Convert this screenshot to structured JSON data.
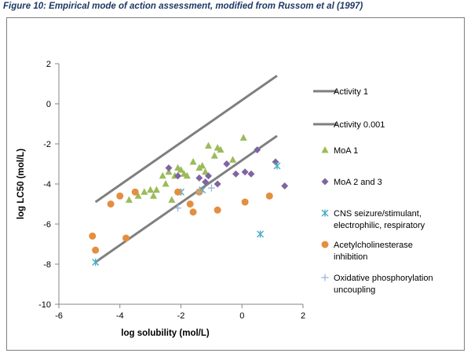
{
  "figure_title": "Figure 10: Empirical mode of action assessment, modified from Russom et al (1997)",
  "chart_data": {
    "type": "scatter",
    "title": "",
    "xlabel": "log solubility (mol/L)",
    "ylabel": "log LC50 (mol/L)",
    "xlim": [
      -6,
      2
    ],
    "ylim": [
      -10,
      2
    ],
    "xticks": [
      "-6",
      "-4",
      "-2",
      "0",
      "2"
    ],
    "yticks": [
      "2",
      "0",
      "-2",
      "-4",
      "-6",
      "-8",
      "-10"
    ],
    "grid": false,
    "legend_position": "right",
    "lines": [
      {
        "name": "Activity 1",
        "color": "#7f7f7f",
        "points": [
          [
            -4.8,
            -4.9
          ],
          [
            1.15,
            1.4
          ]
        ]
      },
      {
        "name": "Activity 0.001",
        "color": "#7f7f7f",
        "points": [
          [
            -4.8,
            -7.9
          ],
          [
            1.15,
            -1.6
          ]
        ]
      }
    ],
    "series": [
      {
        "name": "MoA 1",
        "marker": "triangle",
        "color": "#9bbb59",
        "points": [
          [
            -3.7,
            -4.8
          ],
          [
            -3.4,
            -4.6
          ],
          [
            -3.2,
            -4.4
          ],
          [
            -3.0,
            -4.3
          ],
          [
            -2.9,
            -4.6
          ],
          [
            -2.8,
            -4.3
          ],
          [
            -2.6,
            -3.6
          ],
          [
            -2.5,
            -4.0
          ],
          [
            -2.4,
            -3.4
          ],
          [
            -2.3,
            -4.8
          ],
          [
            -2.2,
            -3.6
          ],
          [
            -2.1,
            -3.2
          ],
          [
            -2.0,
            -3.3
          ],
          [
            -1.9,
            -3.5
          ],
          [
            -1.8,
            -3.6
          ],
          [
            -1.6,
            -2.9
          ],
          [
            -1.4,
            -3.2
          ],
          [
            -1.3,
            -3.1
          ],
          [
            -1.2,
            -3.4
          ],
          [
            -1.1,
            -2.1
          ],
          [
            -0.9,
            -2.6
          ],
          [
            -0.8,
            -2.2
          ],
          [
            -0.7,
            -2.3
          ],
          [
            -0.3,
            -2.8
          ],
          [
            0.05,
            -1.7
          ]
        ]
      },
      {
        "name": "MoA 2 and 3",
        "marker": "diamond",
        "color": "#8064a2",
        "points": [
          [
            -2.4,
            -3.2
          ],
          [
            -2.1,
            -3.6
          ],
          [
            -1.4,
            -3.7
          ],
          [
            -1.2,
            -3.9
          ],
          [
            -1.1,
            -3.6
          ],
          [
            -0.8,
            -4.0
          ],
          [
            -0.5,
            -3.0
          ],
          [
            -0.2,
            -3.5
          ],
          [
            0.1,
            -3.4
          ],
          [
            0.3,
            -3.5
          ],
          [
            0.5,
            -2.3
          ],
          [
            1.1,
            -2.9
          ],
          [
            1.4,
            -4.1
          ]
        ]
      },
      {
        "name": "CNS seizure/stimulant, electrophilic, respiratory",
        "marker": "asterisk",
        "color": "#4bacc6",
        "points": [
          [
            -4.8,
            -7.9
          ],
          [
            -2.0,
            -4.4
          ],
          [
            -1.3,
            -4.3
          ],
          [
            0.6,
            -6.5
          ],
          [
            1.15,
            -3.1
          ]
        ]
      },
      {
        "name": "Acetylcholinesterase inhibition",
        "marker": "circle",
        "color": "#e38f3f",
        "points": [
          [
            -4.9,
            -6.6
          ],
          [
            -4.8,
            -7.3
          ],
          [
            -4.3,
            -5.0
          ],
          [
            -4.0,
            -4.6
          ],
          [
            -3.8,
            -6.7
          ],
          [
            -3.5,
            -4.4
          ],
          [
            -2.1,
            -4.4
          ],
          [
            -1.7,
            -5.0
          ],
          [
            -1.6,
            -5.4
          ],
          [
            -1.4,
            -4.4
          ],
          [
            -0.8,
            -5.3
          ],
          [
            0.1,
            -4.9
          ],
          [
            0.9,
            -4.6
          ]
        ]
      },
      {
        "name": "Oxidative phosphorylation uncoupling",
        "marker": "plus",
        "color": "#95b3d7",
        "points": [
          [
            -2.1,
            -5.2
          ],
          [
            -1.4,
            -4.4
          ],
          [
            -1.0,
            -4.2
          ]
        ]
      }
    ]
  }
}
